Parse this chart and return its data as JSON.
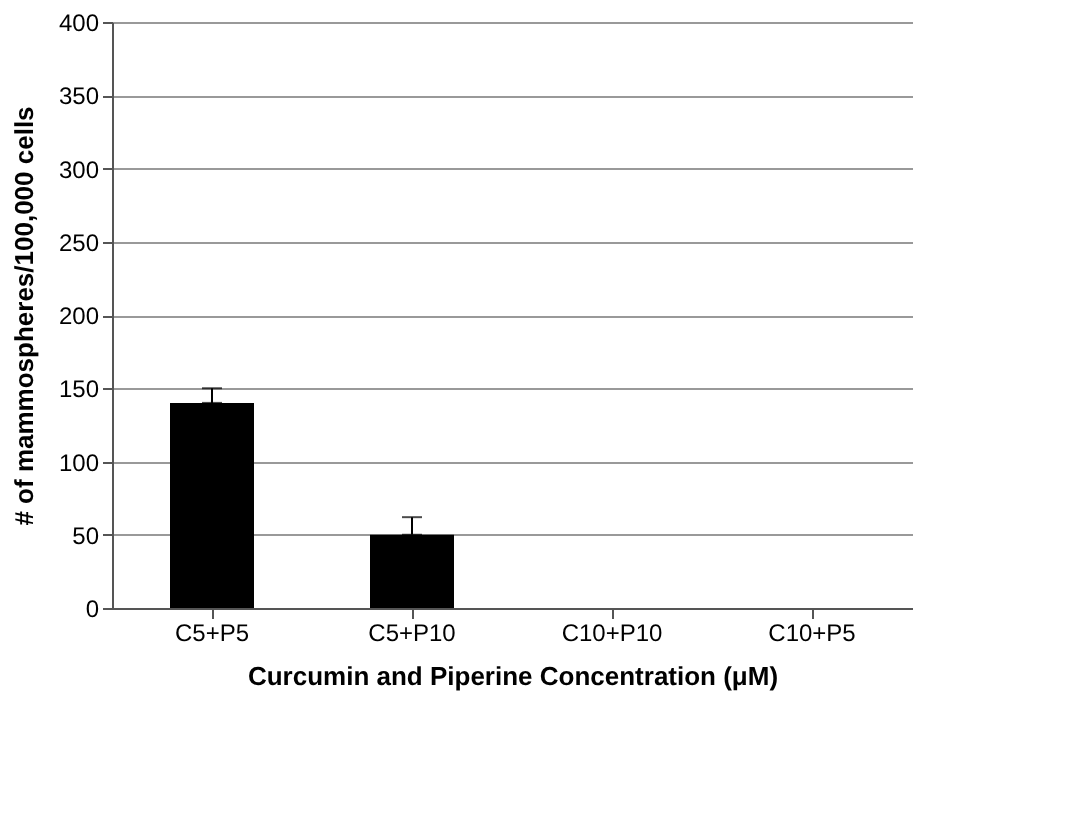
{
  "chart_data": {
    "type": "bar",
    "xlabel": "Curcumin and Piperine Concentration (μM)",
    "ylabel": "# of mammospheres/100,000 cells",
    "categories": [
      "C5+P5",
      "C5+P10",
      "C10+P10",
      "C10+P5"
    ],
    "values": [
      140,
      50,
      0,
      0
    ],
    "color": "#000000",
    "errors": [
      [
        140,
        150
      ],
      [
        50,
        62
      ],
      null,
      null
    ],
    "ylim": [
      0,
      400
    ],
    "yticks": [
      0,
      50,
      100,
      150,
      200,
      250,
      300,
      350,
      400
    ],
    "grid": "y"
  }
}
